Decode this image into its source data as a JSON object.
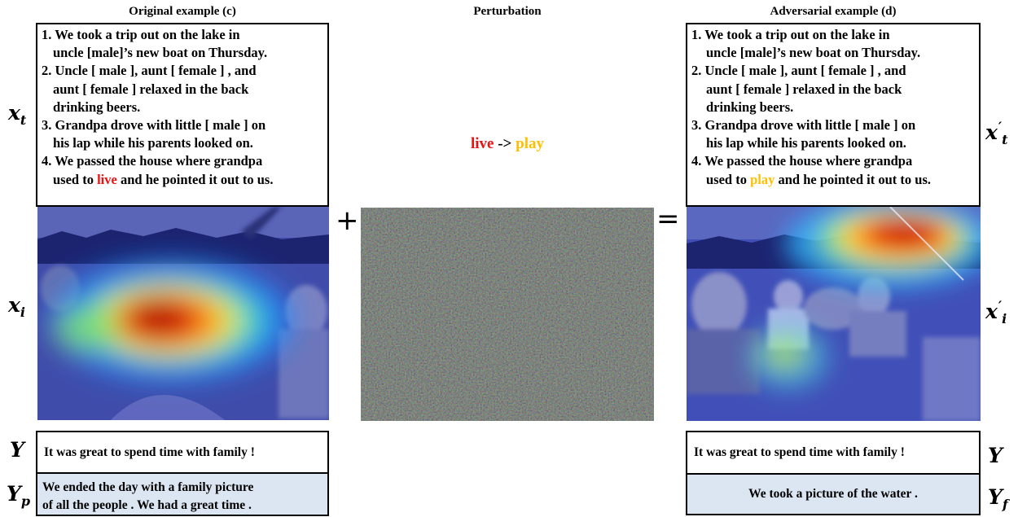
{
  "headers": {
    "original": "Original example (c)",
    "perturbation": "Perturbation",
    "adversarial": "Adversarial example (d)"
  },
  "original_story": {
    "lines": [
      "1. We took a trip out on the lake in",
      "uncle [male]’s new boat on Thursday.",
      "2. Uncle [ male ], aunt [ female ] , and",
      "aunt [ female ] relaxed in the back",
      "drinking beers.",
      "3. Grandpa drove with little [ male ] on",
      "his lap while his parents looked on.",
      "4. We passed the house where grandpa"
    ],
    "last_pre": "used to ",
    "last_word": "live",
    "last_post": " and he pointed it out to us."
  },
  "adversarial_story": {
    "lines": [
      "1. We took a trip out on the lake in",
      "uncle [male]’s new boat on Thursday.",
      "2. Uncle [ male ], aunt [ female ] , and",
      "aunt [ female ] relaxed in the back",
      "drinking beers.",
      "3. Grandpa drove with little [ male ] on",
      "his lap while his parents looked on.",
      "4. We passed the house where grandpa"
    ],
    "last_pre": "used to ",
    "last_word": "play",
    "last_post": " and he pointed it out to us."
  },
  "perturbation_text": {
    "from": "live",
    "arrow": " -> ",
    "to": "play"
  },
  "operators": {
    "plus": "+",
    "equals": "="
  },
  "variables": {
    "xt": "x",
    "xt_sub": "t",
    "xi": "x",
    "xi_sub": "i",
    "y": "Y",
    "yp": "Y",
    "yp_sub": "p",
    "xpt": "x",
    "xpt_sup": "′",
    "xpt_sub": "t",
    "xpi": "x",
    "xpi_sup": "′",
    "xpi_sub": "i",
    "y2": "Y",
    "yf": "Y",
    "yf_sub": "f"
  },
  "ground_truth_left": "It was great to spend time with family !",
  "ground_truth_right": "It was great to spend time with family !",
  "prediction_left": [
    "We ended the day with a family picture",
    "of all the people . We had a great time ."
  ],
  "prediction_right": "We took a picture of the water .",
  "colors": {
    "highlight_original": "#ee1111",
    "highlight_adversarial": "#ffbf00",
    "prediction_box": "#dce6f2"
  }
}
